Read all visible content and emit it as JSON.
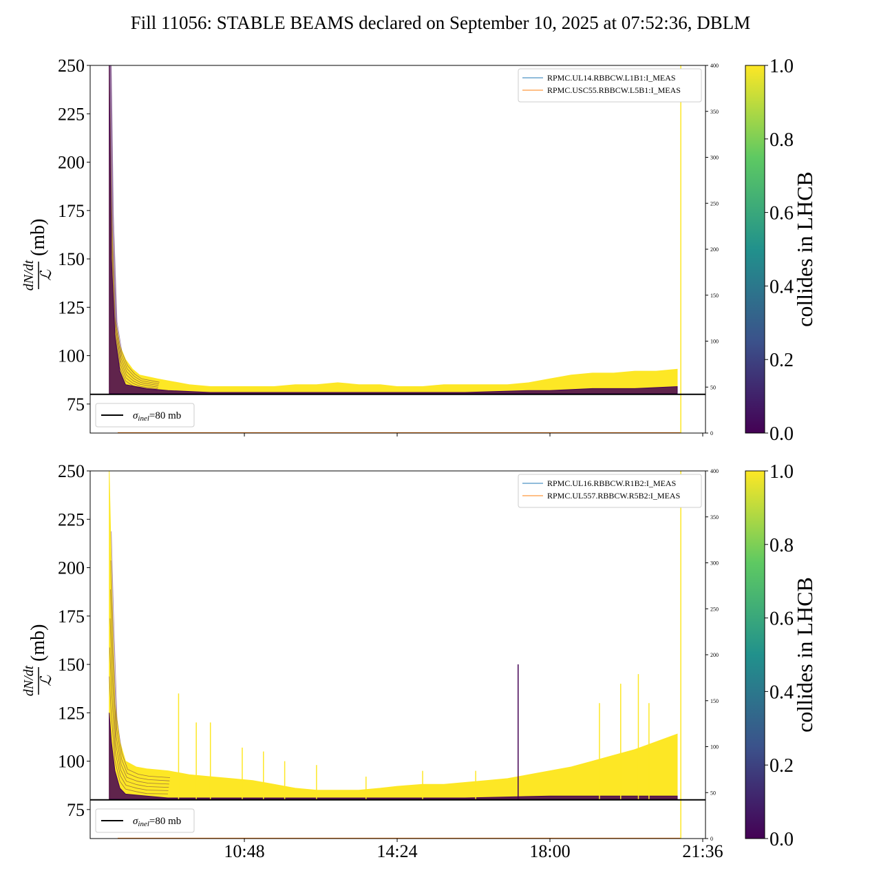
{
  "figure": {
    "title": "Fill 11056: STABLE BEAMS declared on September 10, 2025 at 07:52:36, DBLM"
  },
  "colormap": {
    "name": "viridis",
    "stops": [
      "#440154",
      "#3b528b",
      "#21918c",
      "#5ec962",
      "#fde725"
    ]
  },
  "chart_data": [
    {
      "type": "line",
      "panel": "top",
      "ylabel_num": "dN/dt",
      "ylabel_den": "ℒ",
      "ylabel_unit": "(mb)",
      "ylim": [
        60,
        250
      ],
      "yticks": [
        75,
        100,
        125,
        150,
        175,
        200,
        225,
        250
      ],
      "xlim": [
        "07:10",
        "21:36"
      ],
      "xticks": [],
      "y2lim": [
        0,
        400
      ],
      "y2ticks": [
        0,
        50,
        100,
        150,
        200,
        250,
        300,
        350,
        400
      ],
      "reference_line": {
        "label_sym": "σ",
        "label_sub": "inel",
        "label_rest": "=80 mb",
        "value": 80,
        "color": "#000000"
      },
      "legend": {
        "position": "upper right",
        "entries": [
          {
            "label": "RPMC.UL14.RBBCW.L1B1:I_MEAS",
            "color": "#1f77b4"
          },
          {
            "label": "RPMC.USC55.RBBCW.L5B1:I_MEAS",
            "color": "#ff7f0e"
          }
        ]
      },
      "colorbar": {
        "label": "collides in LHCB",
        "range": [
          0.0,
          1.0
        ],
        "ticks": [
          "0.0",
          "0.2",
          "0.4",
          "0.6",
          "0.8",
          "1.0"
        ]
      },
      "series_upper_envelope": {
        "name": "colliding bunches (yellow)",
        "x": [
          "07:37",
          "07:40",
          "07:45",
          "07:52",
          "08:00",
          "08:10",
          "08:20",
          "08:45",
          "09:00",
          "09:30",
          "10:00",
          "10:48",
          "11:30",
          "12:00",
          "12:30",
          "13:00",
          "13:30",
          "14:00",
          "14:24",
          "15:00",
          "15:30",
          "16:00",
          "16:30",
          "17:00",
          "17:30",
          "18:00",
          "18:30",
          "19:00",
          "19:30",
          "20:00",
          "20:30",
          "21:00"
        ],
        "y": [
          250,
          180,
          120,
          105,
          98,
          93,
          90,
          88,
          87,
          85,
          84,
          84,
          84,
          85,
          85,
          86,
          85,
          85,
          84,
          84,
          85,
          85,
          85,
          85,
          86,
          88,
          90,
          91,
          91,
          92,
          92,
          93
        ]
      },
      "series_lower_envelope": {
        "name": "non-colliding bunches (purple)",
        "x": [
          "07:37",
          "07:40",
          "07:45",
          "07:52",
          "08:00",
          "08:30",
          "09:00",
          "10:00",
          "12:00",
          "14:00",
          "16:00",
          "17:30",
          "18:00",
          "19:00",
          "20:00",
          "21:00"
        ],
        "y": [
          250,
          150,
          110,
          92,
          85,
          83,
          82,
          81,
          81,
          81,
          81,
          82,
          82,
          83,
          83,
          84
        ]
      }
    },
    {
      "type": "line",
      "panel": "bottom",
      "ylabel_num": "dN/dt",
      "ylabel_den": "ℒ",
      "ylabel_unit": "(mb)",
      "ylim": [
        60,
        250
      ],
      "yticks": [
        75,
        100,
        125,
        150,
        175,
        200,
        225,
        250
      ],
      "xlim": [
        "07:10",
        "21:36"
      ],
      "xticks": [
        "10:48",
        "14:24",
        "18:00",
        "21:36"
      ],
      "y2lim": [
        0,
        400
      ],
      "y2ticks": [
        0,
        50,
        100,
        150,
        200,
        250,
        300,
        350,
        400
      ],
      "reference_line": {
        "label_sym": "σ",
        "label_sub": "inel",
        "label_rest": "=80 mb",
        "value": 80,
        "color": "#000000"
      },
      "legend": {
        "position": "upper right",
        "entries": [
          {
            "label": "RPMC.UL16.RBBCW.R1B2:I_MEAS",
            "color": "#1f77b4"
          },
          {
            "label": "RPMC.UL557.RBBCW.R5B2:I_MEAS",
            "color": "#ff7f0e"
          }
        ]
      },
      "colorbar": {
        "label": "collides in LHCB",
        "range": [
          0.0,
          1.0
        ],
        "ticks": [
          "0.0",
          "0.2",
          "0.4",
          "0.6",
          "0.8",
          "1.0"
        ]
      },
      "series_upper_envelope": {
        "name": "colliding bunches (yellow)",
        "x": [
          "07:37",
          "07:40",
          "07:45",
          "07:52",
          "08:00",
          "08:15",
          "08:30",
          "09:00",
          "09:30",
          "10:00",
          "10:30",
          "11:00",
          "11:30",
          "12:00",
          "12:30",
          "13:00",
          "13:30",
          "14:00",
          "14:24",
          "15:00",
          "15:30",
          "16:00",
          "16:30",
          "17:00",
          "17:30",
          "18:00",
          "18:30",
          "19:00",
          "19:30",
          "20:00",
          "20:30",
          "21:00"
        ],
        "y": [
          250,
          200,
          130,
          110,
          100,
          97,
          96,
          95,
          93,
          92,
          91,
          90,
          88,
          86,
          85,
          85,
          85,
          86,
          87,
          88,
          88,
          89,
          90,
          91,
          93,
          95,
          97,
          100,
          103,
          106,
          110,
          114
        ]
      },
      "series_lower_envelope": {
        "name": "non-colliding bunches (purple)",
        "x": [
          "07:37",
          "07:40",
          "07:45",
          "07:52",
          "08:00",
          "08:30",
          "09:00",
          "10:00",
          "12:00",
          "14:00",
          "16:00",
          "18:00",
          "20:00",
          "21:00"
        ],
        "y": [
          125,
          110,
          95,
          86,
          83,
          82,
          81,
          81,
          81,
          81,
          81,
          82,
          82,
          82
        ]
      },
      "spikes": {
        "x": [
          "09:15",
          "09:40",
          "10:00",
          "10:45",
          "11:15",
          "11:45",
          "12:30",
          "13:40",
          "15:00",
          "16:15",
          "17:15",
          "19:10",
          "19:40",
          "20:05",
          "20:20"
        ],
        "y": [
          135,
          120,
          120,
          107,
          105,
          100,
          98,
          92,
          95,
          95,
          150,
          130,
          140,
          145,
          130
        ]
      }
    }
  ]
}
